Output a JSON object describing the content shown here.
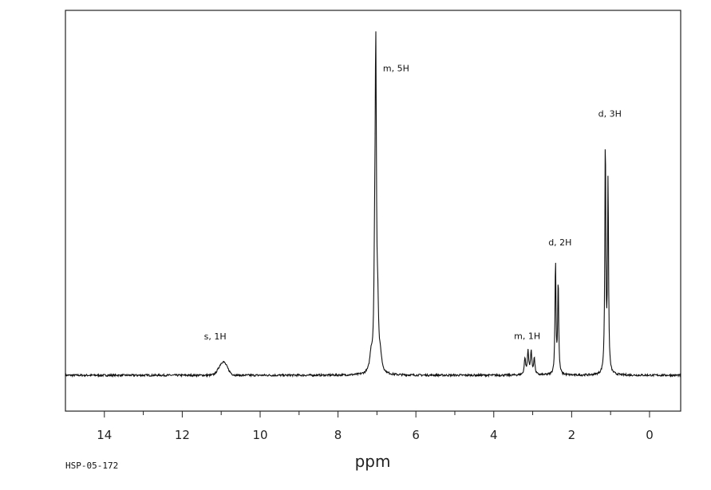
{
  "sample_id": "HSP-05-172",
  "chart_data": {
    "type": "line",
    "title": "",
    "xlabel": "ppm",
    "ylabel": "",
    "xlim": [
      15,
      -0.8
    ],
    "x_reversed": true,
    "ylim": [
      -0.1,
      1.0
    ],
    "grid": false,
    "x_ticks": [
      14,
      12,
      10,
      8,
      6,
      4,
      2,
      0
    ],
    "x_tick_labels": [
      "14",
      "12",
      "10",
      "8",
      "6",
      "4",
      "2",
      "0"
    ],
    "peaks": [
      {
        "label": "s, 1H",
        "shift": 10.95,
        "height": 0.04,
        "width": 0.15,
        "shape": "broad"
      },
      {
        "label": "m, 5H",
        "shift": 7.03,
        "height": 0.93,
        "width": 0.02,
        "shape": "multiplet"
      },
      {
        "label": "m, 1H",
        "shift": 3.08,
        "height": 0.07,
        "width": 0.02,
        "shape": "multiplet"
      },
      {
        "label": "d, 2H",
        "shift": 2.38,
        "height": 0.34,
        "width": 0.015,
        "shape": "doublet"
      },
      {
        "label": "d, 3H",
        "shift": 1.1,
        "height": 0.7,
        "width": 0.015,
        "shape": "doublet"
      }
    ]
  }
}
